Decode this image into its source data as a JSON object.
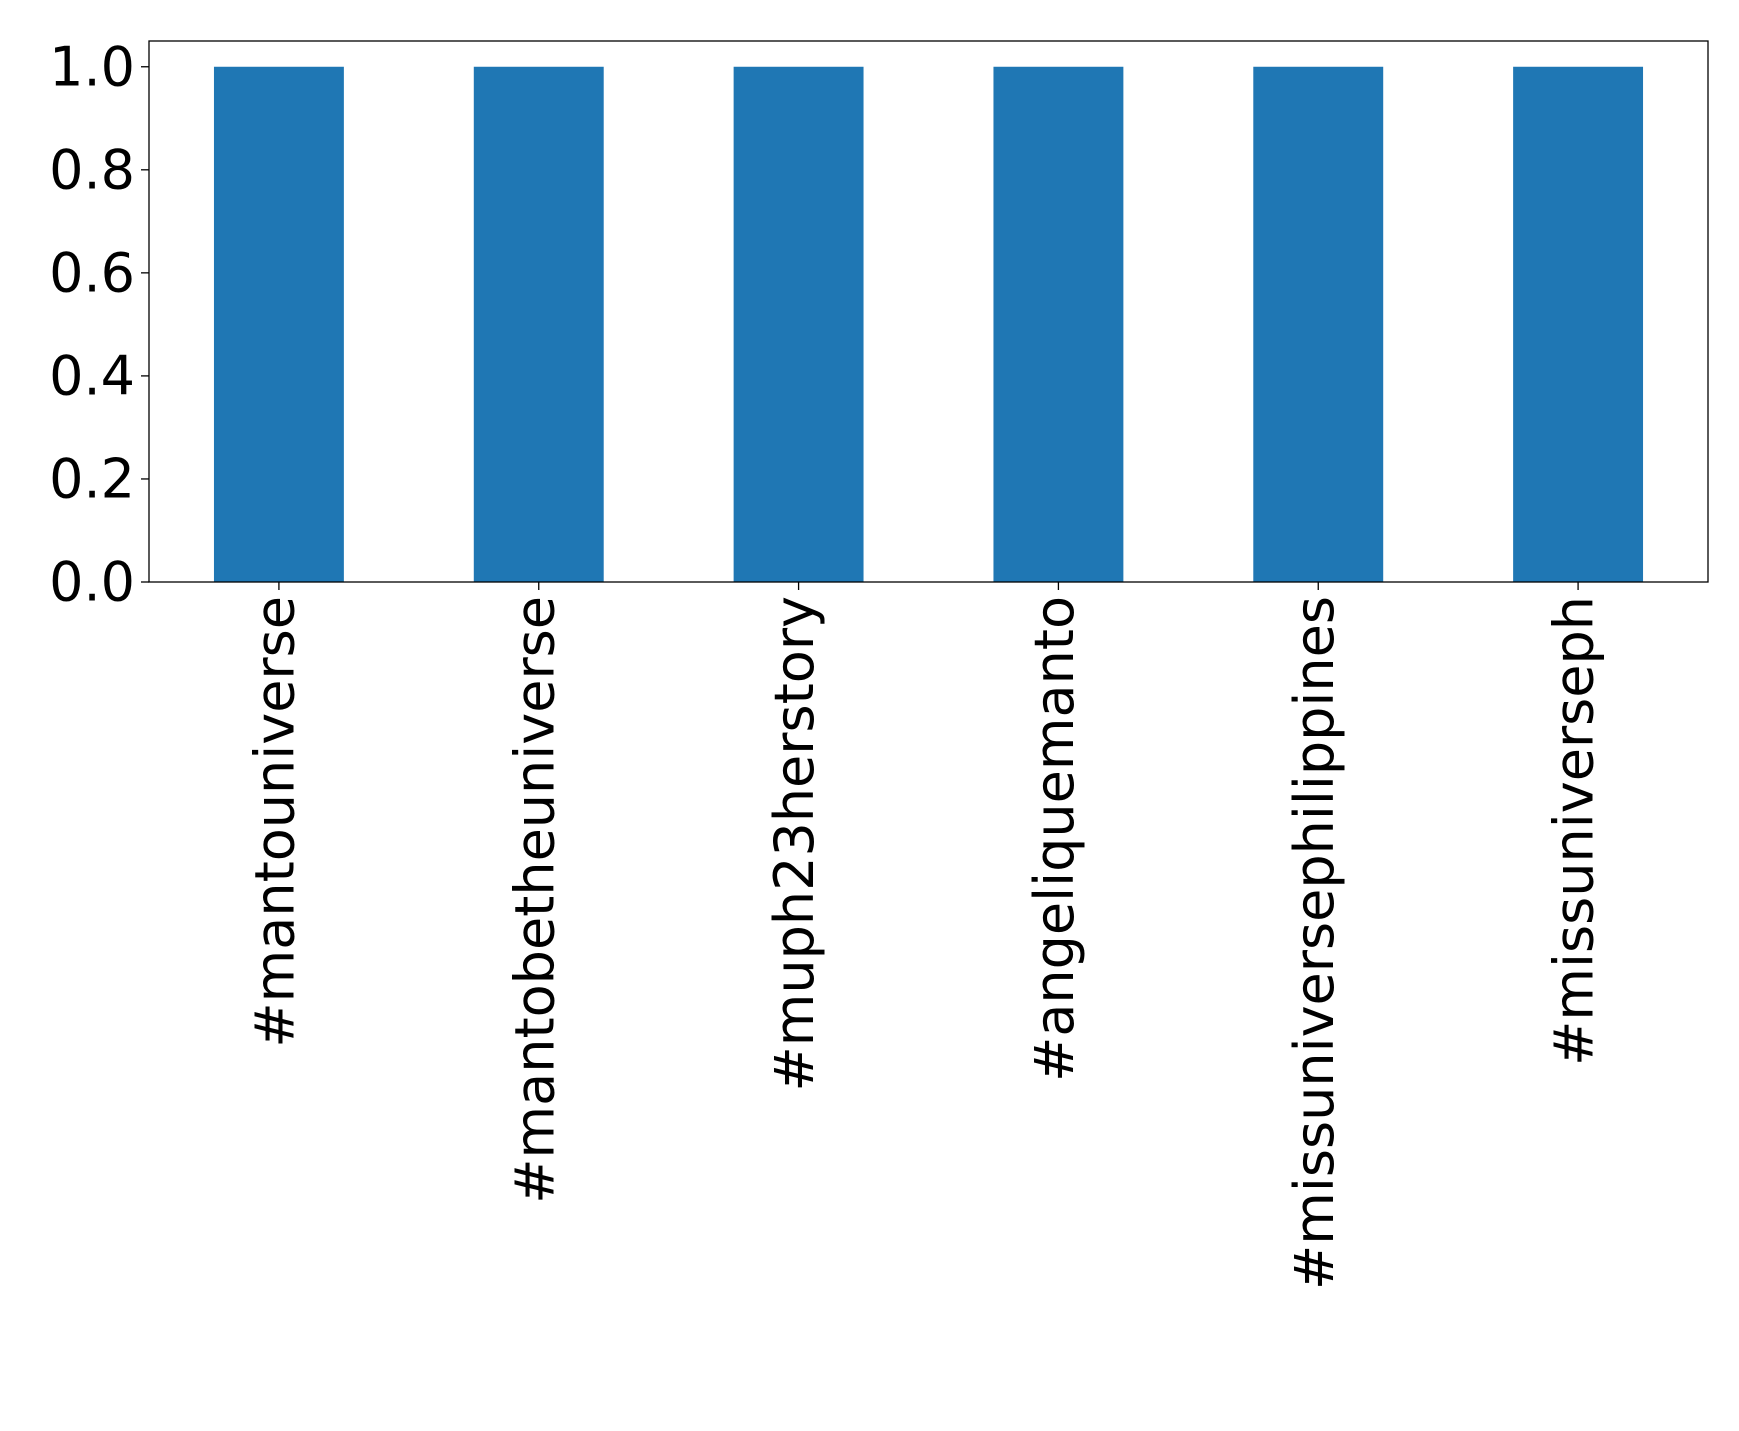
{
  "chart_data": {
    "type": "bar",
    "categories": [
      "#mantouniverse",
      "#mantobetheuniverse",
      "#muph23herstory",
      "#angeliquemanto",
      "#missuniversephilippines",
      "#missuniverseph"
    ],
    "values": [
      1,
      1,
      1,
      1,
      1,
      1
    ],
    "color": "#1f77b4",
    "ylim": [
      0,
      1.05
    ],
    "yticks": [
      {
        "value": 0,
        "label": "0.0"
      },
      0.2,
      0.4,
      0.6,
      0.8,
      {
        "value": 1,
        "label": "1.0"
      }
    ],
    "grid": false
  }
}
